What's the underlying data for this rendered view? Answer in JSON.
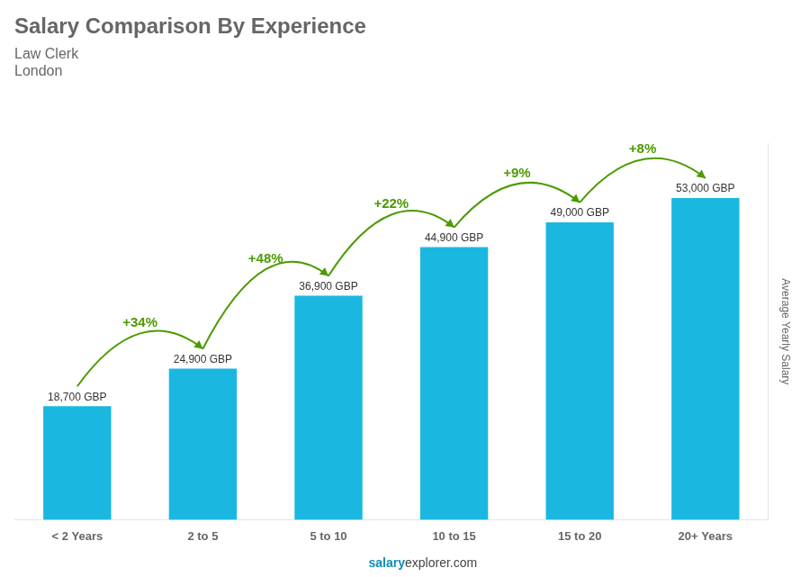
{
  "chart_data": {
    "type": "bar",
    "title": "Salary Comparison By Experience",
    "subtitle": [
      "Law Clerk",
      "London"
    ],
    "y_label": "Average Yearly Salary",
    "footer": [
      "salary",
      "explorer.com"
    ],
    "categories": [
      "< 2 Years",
      "2 to 5",
      "5 to 10",
      "10 to 15",
      "15 to 20",
      "20+ Years"
    ],
    "values": [
      18700,
      24900,
      36900,
      44900,
      49000,
      53000
    ],
    "value_labels": [
      "18,700 GBP",
      "24,900 GBP",
      "36,900 GBP",
      "44,900 GBP",
      "49,000 GBP",
      "53,000 GBP"
    ],
    "data_labels": true,
    "annotations": [
      "+34%",
      "+48%",
      "+22%",
      "+9%",
      "+8%"
    ],
    "color": "#1ab8e0",
    "ylim": [
      0,
      62000
    ],
    "grid": false,
    "tick_labels": "x"
  }
}
